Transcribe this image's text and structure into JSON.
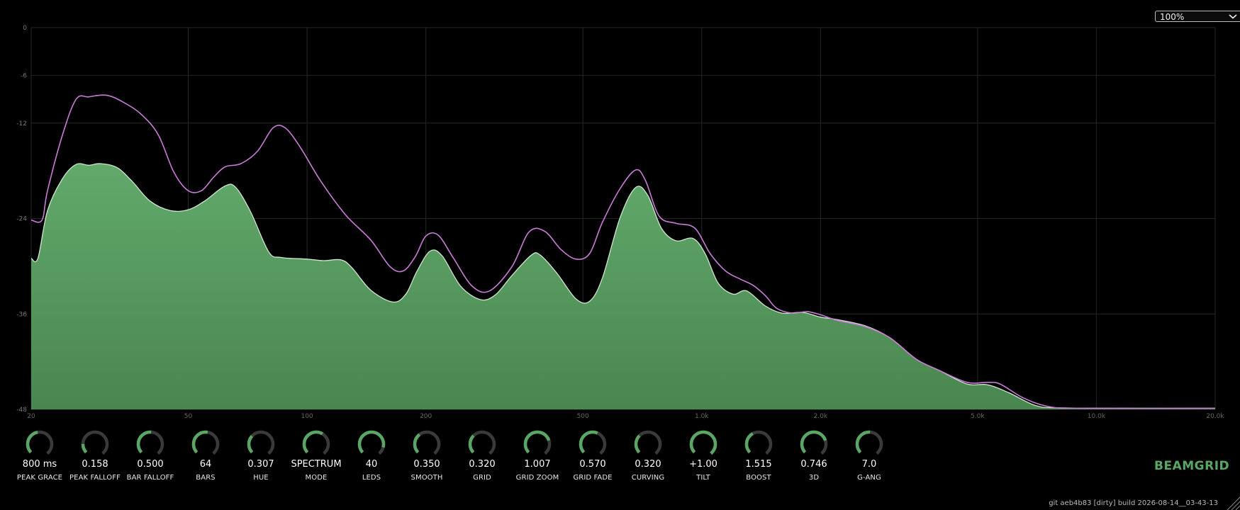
{
  "zoom": {
    "value": "100%"
  },
  "chart_data": {
    "type": "area",
    "xscale": "log",
    "xlim": [
      20,
      20000
    ],
    "ylim": [
      -48,
      0
    ],
    "y_ticks": [
      0,
      -6,
      -12,
      -24,
      -36,
      -48
    ],
    "y_tick_labels": [
      "0",
      "-6",
      "-12",
      "-24",
      "-36",
      "-48"
    ],
    "x_ticks": [
      20,
      50,
      100,
      200,
      500,
      1000,
      2000,
      5000,
      10000,
      20000
    ],
    "x_tick_labels": [
      "20",
      "50",
      "100",
      "200",
      "500",
      "1.0k",
      "2.0k",
      "5.0k",
      "10.0k",
      "20.0k"
    ],
    "grid": true,
    "series": [
      {
        "role": "fill",
        "color": "#5b9e62",
        "points": [
          [
            20,
            -29
          ],
          [
            20.8,
            -29
          ],
          [
            22,
            -23
          ],
          [
            24,
            -19
          ],
          [
            26,
            -17.2
          ],
          [
            28,
            -17.3
          ],
          [
            30,
            -17.1
          ],
          [
            33,
            -17.6
          ],
          [
            36,
            -19.3
          ],
          [
            40,
            -21.8
          ],
          [
            45,
            -23
          ],
          [
            50,
            -22.9
          ],
          [
            55,
            -21.8
          ],
          [
            62,
            -19.9
          ],
          [
            66,
            -20.1
          ],
          [
            72,
            -23.2
          ],
          [
            80,
            -28.2
          ],
          [
            86,
            -28.9
          ],
          [
            100,
            -29.1
          ],
          [
            110,
            -29.3
          ],
          [
            122,
            -29.2
          ],
          [
            130,
            -30.2
          ],
          [
            145,
            -33
          ],
          [
            165,
            -34.5
          ],
          [
            178,
            -33.5
          ],
          [
            190,
            -30.6
          ],
          [
            205,
            -28.1
          ],
          [
            220,
            -28.7
          ],
          [
            245,
            -32.5
          ],
          [
            275,
            -34.2
          ],
          [
            300,
            -33.6
          ],
          [
            330,
            -31.2
          ],
          [
            370,
            -28.6
          ],
          [
            390,
            -28.6
          ],
          [
            430,
            -30.9
          ],
          [
            480,
            -34.1
          ],
          [
            520,
            -34.4
          ],
          [
            560,
            -31.5
          ],
          [
            620,
            -24
          ],
          [
            680,
            -20.1
          ],
          [
            730,
            -21.1
          ],
          [
            790,
            -25.2
          ],
          [
            860,
            -26.8
          ],
          [
            950,
            -26.5
          ],
          [
            1020,
            -28.4
          ],
          [
            1100,
            -32.1
          ],
          [
            1200,
            -33.5
          ],
          [
            1300,
            -33.1
          ],
          [
            1450,
            -35
          ],
          [
            1600,
            -35.9
          ],
          [
            1800,
            -35.8
          ],
          [
            2000,
            -36.4
          ],
          [
            2200,
            -36.7
          ],
          [
            2600,
            -37.5
          ],
          [
            3000,
            -39
          ],
          [
            3500,
            -41.7
          ],
          [
            4000,
            -43.1
          ],
          [
            4700,
            -44.8
          ],
          [
            5300,
            -44.9
          ],
          [
            6000,
            -45.9
          ],
          [
            7000,
            -47.5
          ],
          [
            8000,
            -47.8
          ],
          [
            12000,
            -47.85
          ],
          [
            20000,
            -47.85
          ]
        ]
      },
      {
        "role": "peak",
        "color": "#c97cd6",
        "points": [
          [
            20,
            -24.2
          ],
          [
            21.3,
            -24.2
          ],
          [
            22,
            -20.5
          ],
          [
            24,
            -13.5
          ],
          [
            26,
            -9
          ],
          [
            28,
            -8.7
          ],
          [
            31,
            -8.5
          ],
          [
            34,
            -9.3
          ],
          [
            38,
            -10.9
          ],
          [
            42,
            -13.5
          ],
          [
            46,
            -18.2
          ],
          [
            50,
            -20.5
          ],
          [
            54,
            -20.5
          ],
          [
            58,
            -18.8
          ],
          [
            62,
            -17.5
          ],
          [
            68,
            -17.1
          ],
          [
            75,
            -15.5
          ],
          [
            82,
            -12.6
          ],
          [
            88,
            -12.6
          ],
          [
            96,
            -15
          ],
          [
            108,
            -19.2
          ],
          [
            125,
            -23.5
          ],
          [
            145,
            -26.7
          ],
          [
            162,
            -30
          ],
          [
            175,
            -30.6
          ],
          [
            188,
            -28.8
          ],
          [
            200,
            -26.2
          ],
          [
            215,
            -26.1
          ],
          [
            235,
            -29
          ],
          [
            262,
            -32.5
          ],
          [
            290,
            -33.1
          ],
          [
            330,
            -30.1
          ],
          [
            365,
            -25.7
          ],
          [
            400,
            -25.6
          ],
          [
            440,
            -27.9
          ],
          [
            480,
            -29.1
          ],
          [
            520,
            -28.4
          ],
          [
            560,
            -24.5
          ],
          [
            620,
            -20.3
          ],
          [
            680,
            -17.9
          ],
          [
            720,
            -19.2
          ],
          [
            780,
            -23.7
          ],
          [
            860,
            -24.6
          ],
          [
            960,
            -25.2
          ],
          [
            1050,
            -28.4
          ],
          [
            1150,
            -30.6
          ],
          [
            1250,
            -31.6
          ],
          [
            1350,
            -32.4
          ],
          [
            1450,
            -33.7
          ],
          [
            1550,
            -35.3
          ],
          [
            1700,
            -35.9
          ],
          [
            1850,
            -35.7
          ],
          [
            2000,
            -36.1
          ],
          [
            2200,
            -36.8
          ],
          [
            2600,
            -37.6
          ],
          [
            3000,
            -39
          ],
          [
            3500,
            -41.7
          ],
          [
            4000,
            -43.1
          ],
          [
            4700,
            -44.6
          ],
          [
            5300,
            -44.6
          ],
          [
            5700,
            -44.8
          ],
          [
            6500,
            -46.5
          ],
          [
            7500,
            -47.6
          ],
          [
            9000,
            -47.85
          ],
          [
            20000,
            -47.85
          ]
        ]
      }
    ]
  },
  "knobs": [
    {
      "name": "knob-peak-grace",
      "value": "800 ms",
      "label": "PEAK GRACE",
      "level": 0.45
    },
    {
      "name": "knob-peak-falloff",
      "value": "0.158",
      "label": "PEAK FALLOFF",
      "level": 0.16
    },
    {
      "name": "knob-bar-falloff",
      "value": "0.500",
      "label": "BAR FALLOFF",
      "level": 0.5
    },
    {
      "name": "knob-bars",
      "value": "64",
      "label": "BARS",
      "level": 0.52
    },
    {
      "name": "knob-hue",
      "value": "0.307",
      "label": "HUE",
      "level": 0.31
    },
    {
      "name": "knob-mode",
      "value": "SPECTRUM",
      "label": "MODE",
      "level": 0.6
    },
    {
      "name": "knob-leds",
      "value": "40",
      "label": "LEDS",
      "level": 0.87
    },
    {
      "name": "knob-smooth",
      "value": "0.350",
      "label": "SMOOTH",
      "level": 0.35
    },
    {
      "name": "knob-grid",
      "value": "0.320",
      "label": "GRID",
      "level": 0.32
    },
    {
      "name": "knob-grid-zoom",
      "value": "1.007",
      "label": "GRID ZOOM",
      "level": 0.75
    },
    {
      "name": "knob-grid-fade",
      "value": "0.570",
      "label": "GRID FADE",
      "level": 0.57
    },
    {
      "name": "knob-curving",
      "value": "0.320",
      "label": "CURVING",
      "level": 0.32
    },
    {
      "name": "knob-tilt",
      "value": "+1.00",
      "label": "TILT",
      "level": 1.0
    },
    {
      "name": "knob-boost",
      "value": "1.515",
      "label": "BOOST",
      "level": 0.38
    },
    {
      "name": "knob-3d",
      "value": "0.746",
      "label": "3D",
      "level": 0.75
    },
    {
      "name": "knob-g-ang",
      "value": "7.0",
      "label": "G-ANG",
      "level": 0.5
    }
  ],
  "brand": "BEAMGRID",
  "build_info": "git aeb4b83  [dirty]  build 2026-08-14__03-43-13",
  "colors": {
    "accent": "#5aa765",
    "knob_track": "#3a3a3a",
    "grid": "#262626"
  }
}
